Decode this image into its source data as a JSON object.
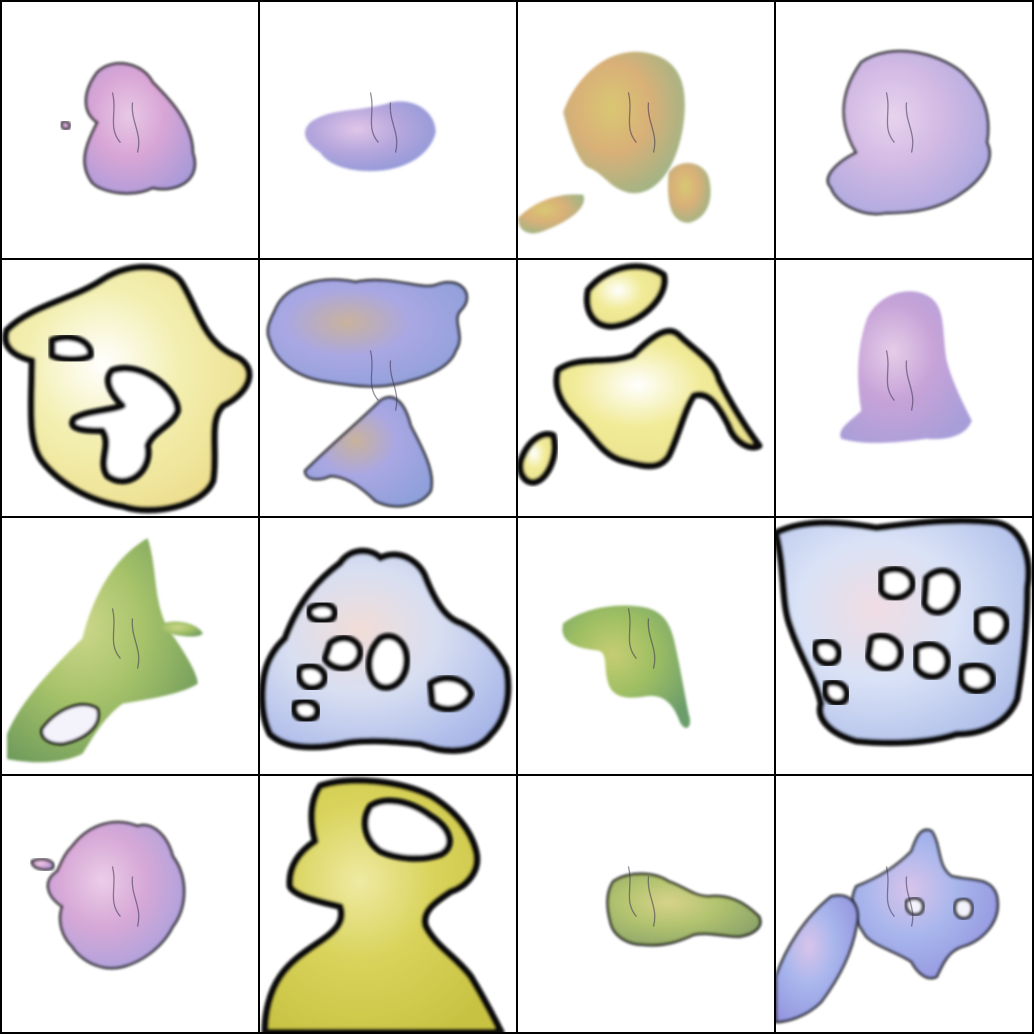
{
  "grid": {
    "rows": 4,
    "cols": 4,
    "border_color": "#000000",
    "background": "#ffffff"
  },
  "tiles": [
    {
      "id": "r1c1",
      "description_icon": "pink-purple-blob",
      "palette": [
        "#d9a6d6",
        "#a99ad8",
        "#e7c8e6"
      ],
      "outline": "thin"
    },
    {
      "id": "r1c2",
      "description_icon": "purple-blue-blob",
      "palette": [
        "#b7a7dd",
        "#8d97d7",
        "#e0c6e8"
      ],
      "outline": "none"
    },
    {
      "id": "r1c3",
      "description_icon": "orange-green-blob",
      "palette": [
        "#d9b078",
        "#98b487",
        "#d9c772"
      ],
      "outline": "none"
    },
    {
      "id": "r1c4",
      "description_icon": "lavender-blob",
      "palette": [
        "#d1b9e3",
        "#a9a7df",
        "#e8d3ee"
      ],
      "outline": "thin"
    },
    {
      "id": "r2c1",
      "description_icon": "yellow-outlined-blob",
      "palette": [
        "#f3efb0",
        "#eddc8a",
        "#ffffff"
      ],
      "outline": "thick"
    },
    {
      "id": "r2c2",
      "description_icon": "blue-purple-blobs",
      "palette": [
        "#a9a7e3",
        "#8fa0da",
        "#c9b29b"
      ],
      "outline": "thin"
    },
    {
      "id": "r2c3",
      "description_icon": "yellow-outlined-blobs",
      "palette": [
        "#f1eb98",
        "#e9df8d",
        "#ffffff"
      ],
      "outline": "thick"
    },
    {
      "id": "r2c4",
      "description_icon": "violet-blob",
      "palette": [
        "#c7a3d8",
        "#a79ed9",
        "#e6cde8"
      ],
      "outline": "none"
    },
    {
      "id": "r3c1",
      "description_icon": "green-blob",
      "palette": [
        "#a7c36a",
        "#6f9b5b",
        "#cbd68a"
      ],
      "outline": "none"
    },
    {
      "id": "r3c2",
      "description_icon": "pale-blue-outlined-blob",
      "palette": [
        "#d8dff2",
        "#a9b7e8",
        "#f1ddd7"
      ],
      "outline": "thick"
    },
    {
      "id": "r3c3",
      "description_icon": "green-small-blob",
      "palette": [
        "#9fbf63",
        "#6b9d6b",
        "#c6cd73"
      ],
      "outline": "none"
    },
    {
      "id": "r3c4",
      "description_icon": "pale-blue-outlined-large-blob",
      "palette": [
        "#d9e2f6",
        "#aebde9",
        "#f0dde2"
      ],
      "outline": "thick"
    },
    {
      "id": "r4c1",
      "description_icon": "pink-purple-blob",
      "palette": [
        "#d7a8d7",
        "#a6a1dc",
        "#ebcde8"
      ],
      "outline": "thin"
    },
    {
      "id": "r4c2",
      "description_icon": "yellow-large-blob",
      "palette": [
        "#d9d35b",
        "#c8c243",
        "#eeeaa2"
      ],
      "outline": "thick"
    },
    {
      "id": "r4c3",
      "description_icon": "olive-small-blob",
      "palette": [
        "#b3c46f",
        "#8aa26a",
        "#d7d28b"
      ],
      "outline": "thin"
    },
    {
      "id": "r4c4",
      "description_icon": "blue-purple-blob",
      "palette": [
        "#a8b6ec",
        "#9393de",
        "#d8c4ea"
      ],
      "outline": "thin"
    }
  ]
}
